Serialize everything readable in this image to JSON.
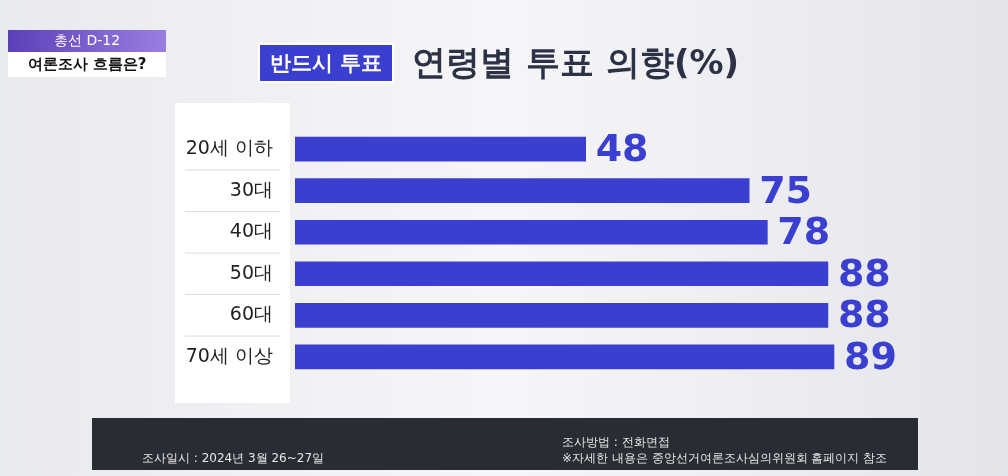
{
  "chart_data": {
    "type": "bar",
    "orientation": "horizontal",
    "title": "연령별 투표 의향(%)",
    "subtitle": "반드시 투표",
    "categories": [
      "20세 이하",
      "30대",
      "40대",
      "50대",
      "60대",
      "70세 이상"
    ],
    "values": [
      48,
      75,
      78,
      88,
      88,
      89
    ],
    "color": "#3b3fd0",
    "data_labels": true,
    "tick_labels": "y",
    "annotations": [
      "총선 D-12",
      "여론조사 흐름은?",
      "조사일시 : 2024년 3월 26~27일",
      "조사방법 : 전화면접",
      "※자세한 내용은 중앙선거여론조사심의위원회 홈페이지 참조"
    ]
  }
}
